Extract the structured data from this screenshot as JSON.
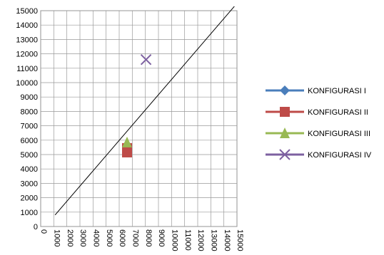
{
  "chart_data": {
    "type": "scatter",
    "xlim": [
      0,
      15000
    ],
    "ylim": [
      0,
      15000
    ],
    "xticks": [
      0,
      1000,
      2000,
      3000,
      4000,
      5000,
      6000,
      7000,
      8000,
      9000,
      10000,
      11000,
      12000,
      13000,
      14000,
      15000
    ],
    "yticks": [
      0,
      1000,
      2000,
      3000,
      4000,
      5000,
      6000,
      7000,
      8000,
      9000,
      10000,
      11000,
      12000,
      13000,
      14000,
      15000
    ],
    "grid": true,
    "legend": "right",
    "series": [
      {
        "name": "KONFIGURASI I",
        "color": "#4a7ebb",
        "marker": "diamond",
        "x": [
          6600
        ],
        "values": [
          5150
        ]
      },
      {
        "name": "KONFIGURASI II",
        "color": "#be4b48",
        "marker": "square",
        "x": [
          6600,
          6600
        ],
        "values": [
          5150,
          5450
        ]
      },
      {
        "name": "KONFIGURASI III",
        "color": "#98b954",
        "marker": "triangle",
        "x": [
          6600
        ],
        "values": [
          5850
        ]
      },
      {
        "name": "KONFIGURASI IV",
        "color": "#7d60a0",
        "marker": "x",
        "x": [
          8050
        ],
        "values": [
          11600
        ]
      }
    ],
    "reference_line": {
      "color": "#000000",
      "x": [
        1100,
        14800
      ],
      "values": [
        800,
        15300
      ]
    }
  }
}
